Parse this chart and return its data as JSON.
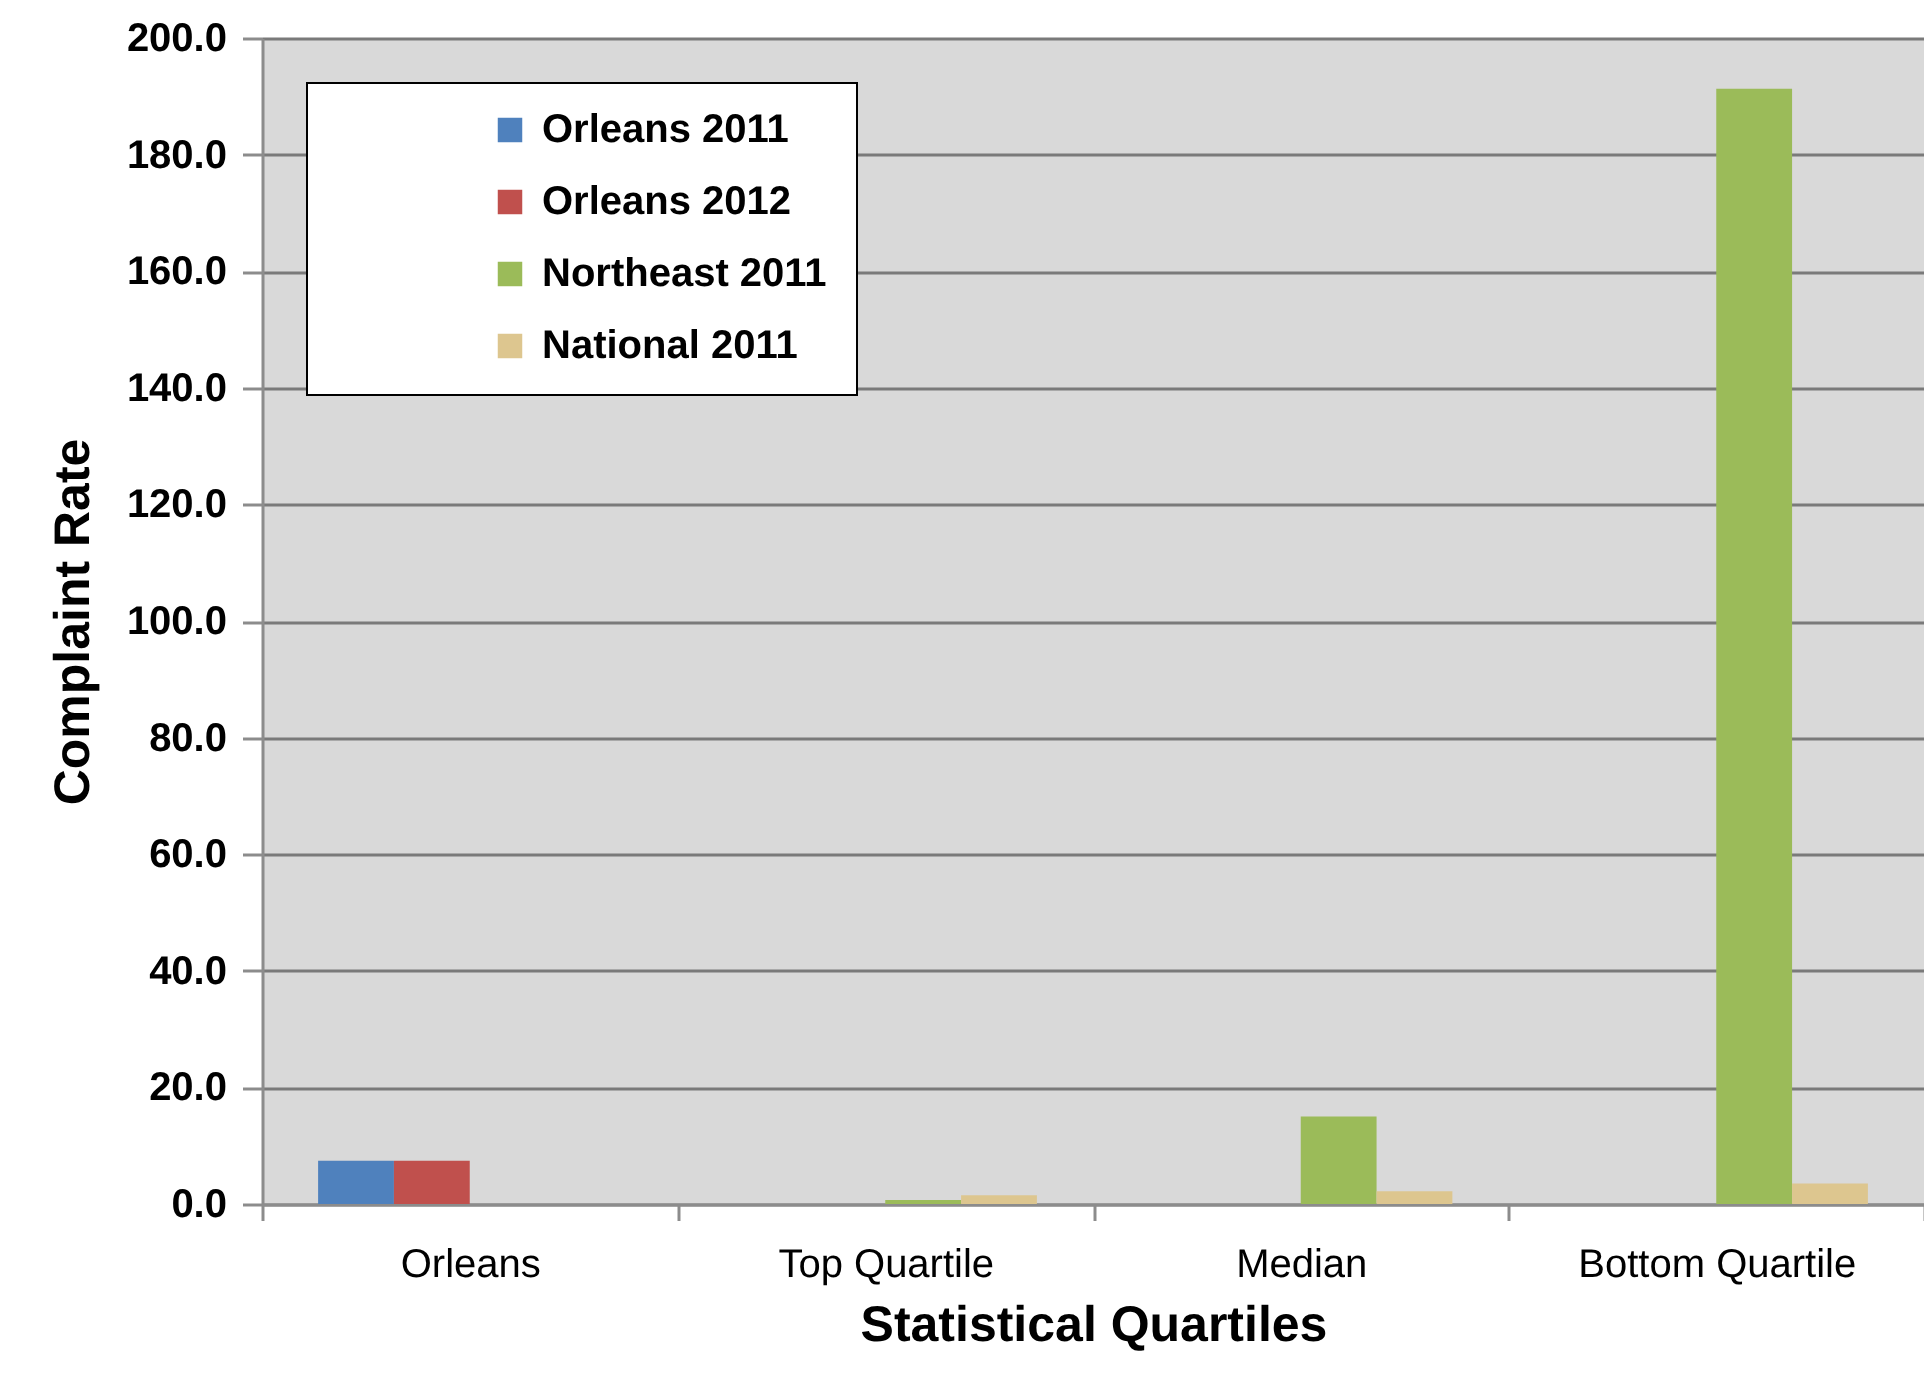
{
  "chart_data": {
    "type": "bar",
    "xlabel": "Statistical Quartiles",
    "ylabel": "Complaint Rate",
    "categories": [
      "Orleans",
      "Top Quartile",
      "Median",
      "Bottom Quartile"
    ],
    "series": [
      {
        "name": "Orleans 2011",
        "color": "#4f81bd",
        "values": [
          7.4,
          null,
          null,
          null
        ]
      },
      {
        "name": "Orleans 2012",
        "color": "#c0504d",
        "values": [
          7.4,
          null,
          null,
          null
        ]
      },
      {
        "name": "Northeast 2011",
        "color": "#9bbb59",
        "values": [
          null,
          0.7,
          15.0,
          191.3
        ]
      },
      {
        "name": "National 2011",
        "color": "#ddc68f",
        "values": [
          null,
          1.5,
          2.2,
          3.5
        ]
      }
    ],
    "ylim": [
      0,
      200
    ],
    "yticks": [
      {
        "value": 0,
        "label": "0.0"
      },
      {
        "value": 20,
        "label": "20.0"
      },
      {
        "value": 40,
        "label": "40.0"
      },
      {
        "value": 60,
        "label": "60.0"
      },
      {
        "value": 80,
        "label": "80.0"
      },
      {
        "value": 100,
        "label": "100.0"
      },
      {
        "value": 120,
        "label": "120.0"
      },
      {
        "value": 140,
        "label": "140.0"
      },
      {
        "value": 160,
        "label": "160.0"
      },
      {
        "value": 180,
        "label": "180.0"
      },
      {
        "value": 200,
        "label": "200.0"
      }
    ],
    "grid": "y",
    "legend": "top left"
  }
}
